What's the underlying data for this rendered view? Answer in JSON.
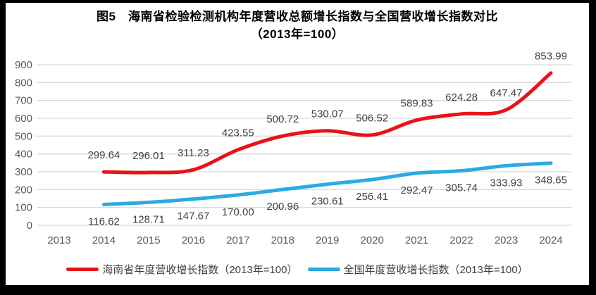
{
  "title": {
    "line1": "图5　海南省检验检测机构年度营收总额增长指数与全国营收增长指数对比",
    "line2": "（2013年=100）"
  },
  "chart_data": {
    "type": "line",
    "title": "图5 海南省检验检测机构年度营收总额增长指数与全国营收增长指数对比（2013年=100）",
    "categories": [
      "2013",
      "2014",
      "2015",
      "2016",
      "2017",
      "2018",
      "2019",
      "2020",
      "2021",
      "2022",
      "2023",
      "2024"
    ],
    "series": [
      {
        "name": "海南省年度营收增长指数（2013年=100）",
        "color": "#e81219",
        "x": [
          "2014",
          "2015",
          "2016",
          "2017",
          "2018",
          "2019",
          "2020",
          "2021",
          "2022",
          "2023",
          "2024"
        ],
        "values": [
          299.64,
          296.01,
          311.23,
          423.55,
          500.72,
          530.07,
          506.52,
          589.83,
          624.28,
          647.47,
          853.99
        ],
        "label_position": "above"
      },
      {
        "name": "全国年度营收增长指数（2013年=100）",
        "color": "#2aabe2",
        "x": [
          "2014",
          "2015",
          "2016",
          "2017",
          "2018",
          "2019",
          "2020",
          "2021",
          "2022",
          "2023",
          "2024"
        ],
        "values": [
          116.62,
          128.71,
          147.67,
          170.0,
          200.96,
          230.61,
          256.41,
          292.47,
          305.74,
          333.93,
          348.65
        ],
        "label_position": "below"
      }
    ],
    "ylim": [
      0,
      900
    ],
    "ytick_step": 100,
    "yticks": [
      "0",
      "100",
      "200",
      "300",
      "400",
      "500",
      "600",
      "700",
      "800",
      "900"
    ],
    "grid": true,
    "legend_position": "bottom",
    "value_label_decimals": 2
  },
  "colors": {
    "frame_border": "#000000",
    "background": "#ffffff",
    "gridline": "#d9d9d9",
    "tick_label": "#595959",
    "data_label": "#404040",
    "title_text": "#000000",
    "legend_text": "#404040"
  }
}
